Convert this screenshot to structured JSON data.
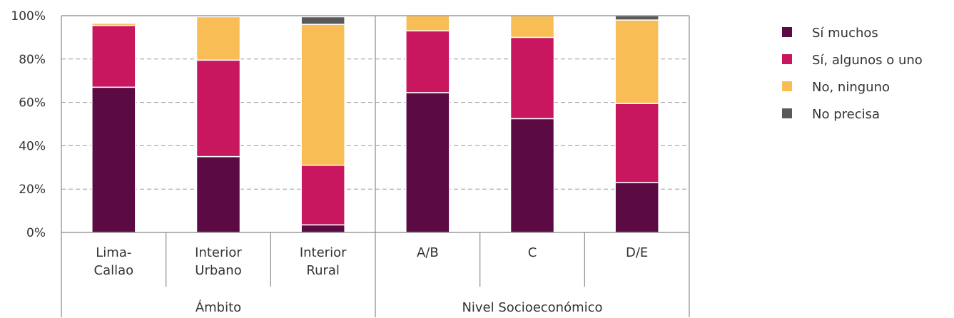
{
  "chart_data": {
    "type": "bar",
    "stacked": true,
    "y_ticks": [
      "0%",
      "20%",
      "40%",
      "60%",
      "80%",
      "100%"
    ],
    "ylim": [
      0,
      100
    ],
    "grid": true,
    "legend_position": "right",
    "categories": [
      {
        "lines": [
          "Lima-",
          "Callao"
        ],
        "group": 0
      },
      {
        "lines": [
          "Interior",
          "Urbano"
        ],
        "group": 0
      },
      {
        "lines": [
          "Interior",
          "Rural"
        ],
        "group": 0
      },
      {
        "lines": [
          "A/B"
        ],
        "group": 1
      },
      {
        "lines": [
          "C"
        ],
        "group": 1
      },
      {
        "lines": [
          "D/E"
        ],
        "group": 1
      }
    ],
    "groups": [
      "Ámbito",
      "Nivel Socioeconómico"
    ],
    "series": [
      {
        "name": "Sí muchos",
        "color": "#5c0a44",
        "values": [
          67,
          35,
          3.5,
          64.5,
          52.5,
          23
        ]
      },
      {
        "name": "Sí, algunos o uno",
        "color": "#c8175f",
        "values": [
          28.5,
          44.5,
          27.5,
          28.5,
          37.5,
          36.5
        ]
      },
      {
        "name": "No, ninguno",
        "color": "#f8bd55",
        "values": [
          1,
          20,
          65,
          7,
          10,
          38.5
        ]
      },
      {
        "name": "No precisa",
        "color": "#5a5a5a",
        "values": [
          0,
          0,
          3.5,
          0,
          0,
          2
        ]
      }
    ]
  }
}
